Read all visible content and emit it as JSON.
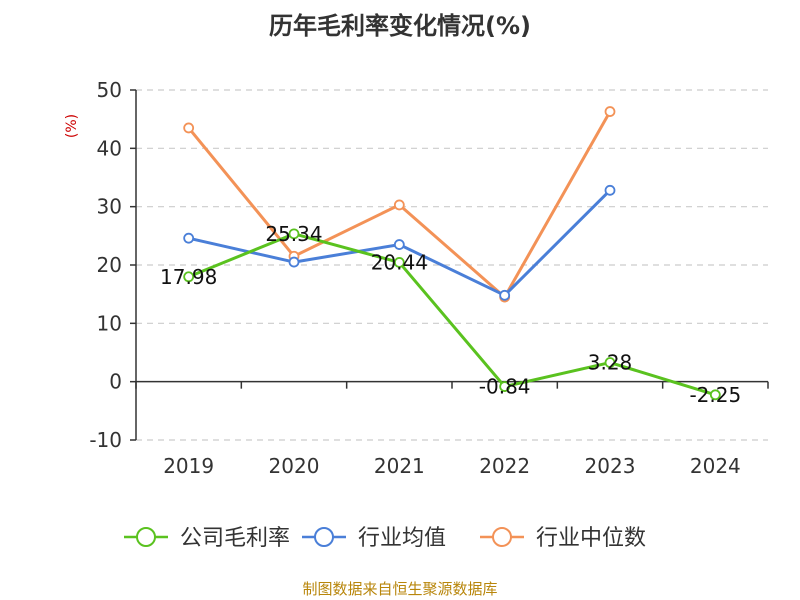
{
  "chart_data": {
    "type": "line",
    "title": "历年毛利率变化情况(%)",
    "ylabel": "(%)",
    "xlabel": "",
    "ylim": [
      -10,
      50
    ],
    "yticks": [
      -10,
      0,
      10,
      20,
      30,
      40,
      50
    ],
    "categories": [
      "2019",
      "2020",
      "2021",
      "2022",
      "2023",
      "2024"
    ],
    "grid": true,
    "legend_position": "bottom",
    "series": [
      {
        "name": "公司毛利率",
        "color": "#5ac21f",
        "values": [
          17.98,
          25.34,
          20.44,
          -0.84,
          3.28,
          -2.25
        ],
        "labels": [
          "17.98",
          "25.34",
          "20.44",
          "-0.84",
          "3.28",
          "-2.25"
        ]
      },
      {
        "name": "行业均值",
        "color": "#4a7fd8",
        "values": [
          24.6,
          20.5,
          23.5,
          14.8,
          32.8,
          null
        ]
      },
      {
        "name": "行业中位数",
        "color": "#f39257",
        "values": [
          43.5,
          21.5,
          30.3,
          14.5,
          46.3,
          null
        ]
      }
    ]
  },
  "source": "制图数据来自恒生聚源数据库"
}
